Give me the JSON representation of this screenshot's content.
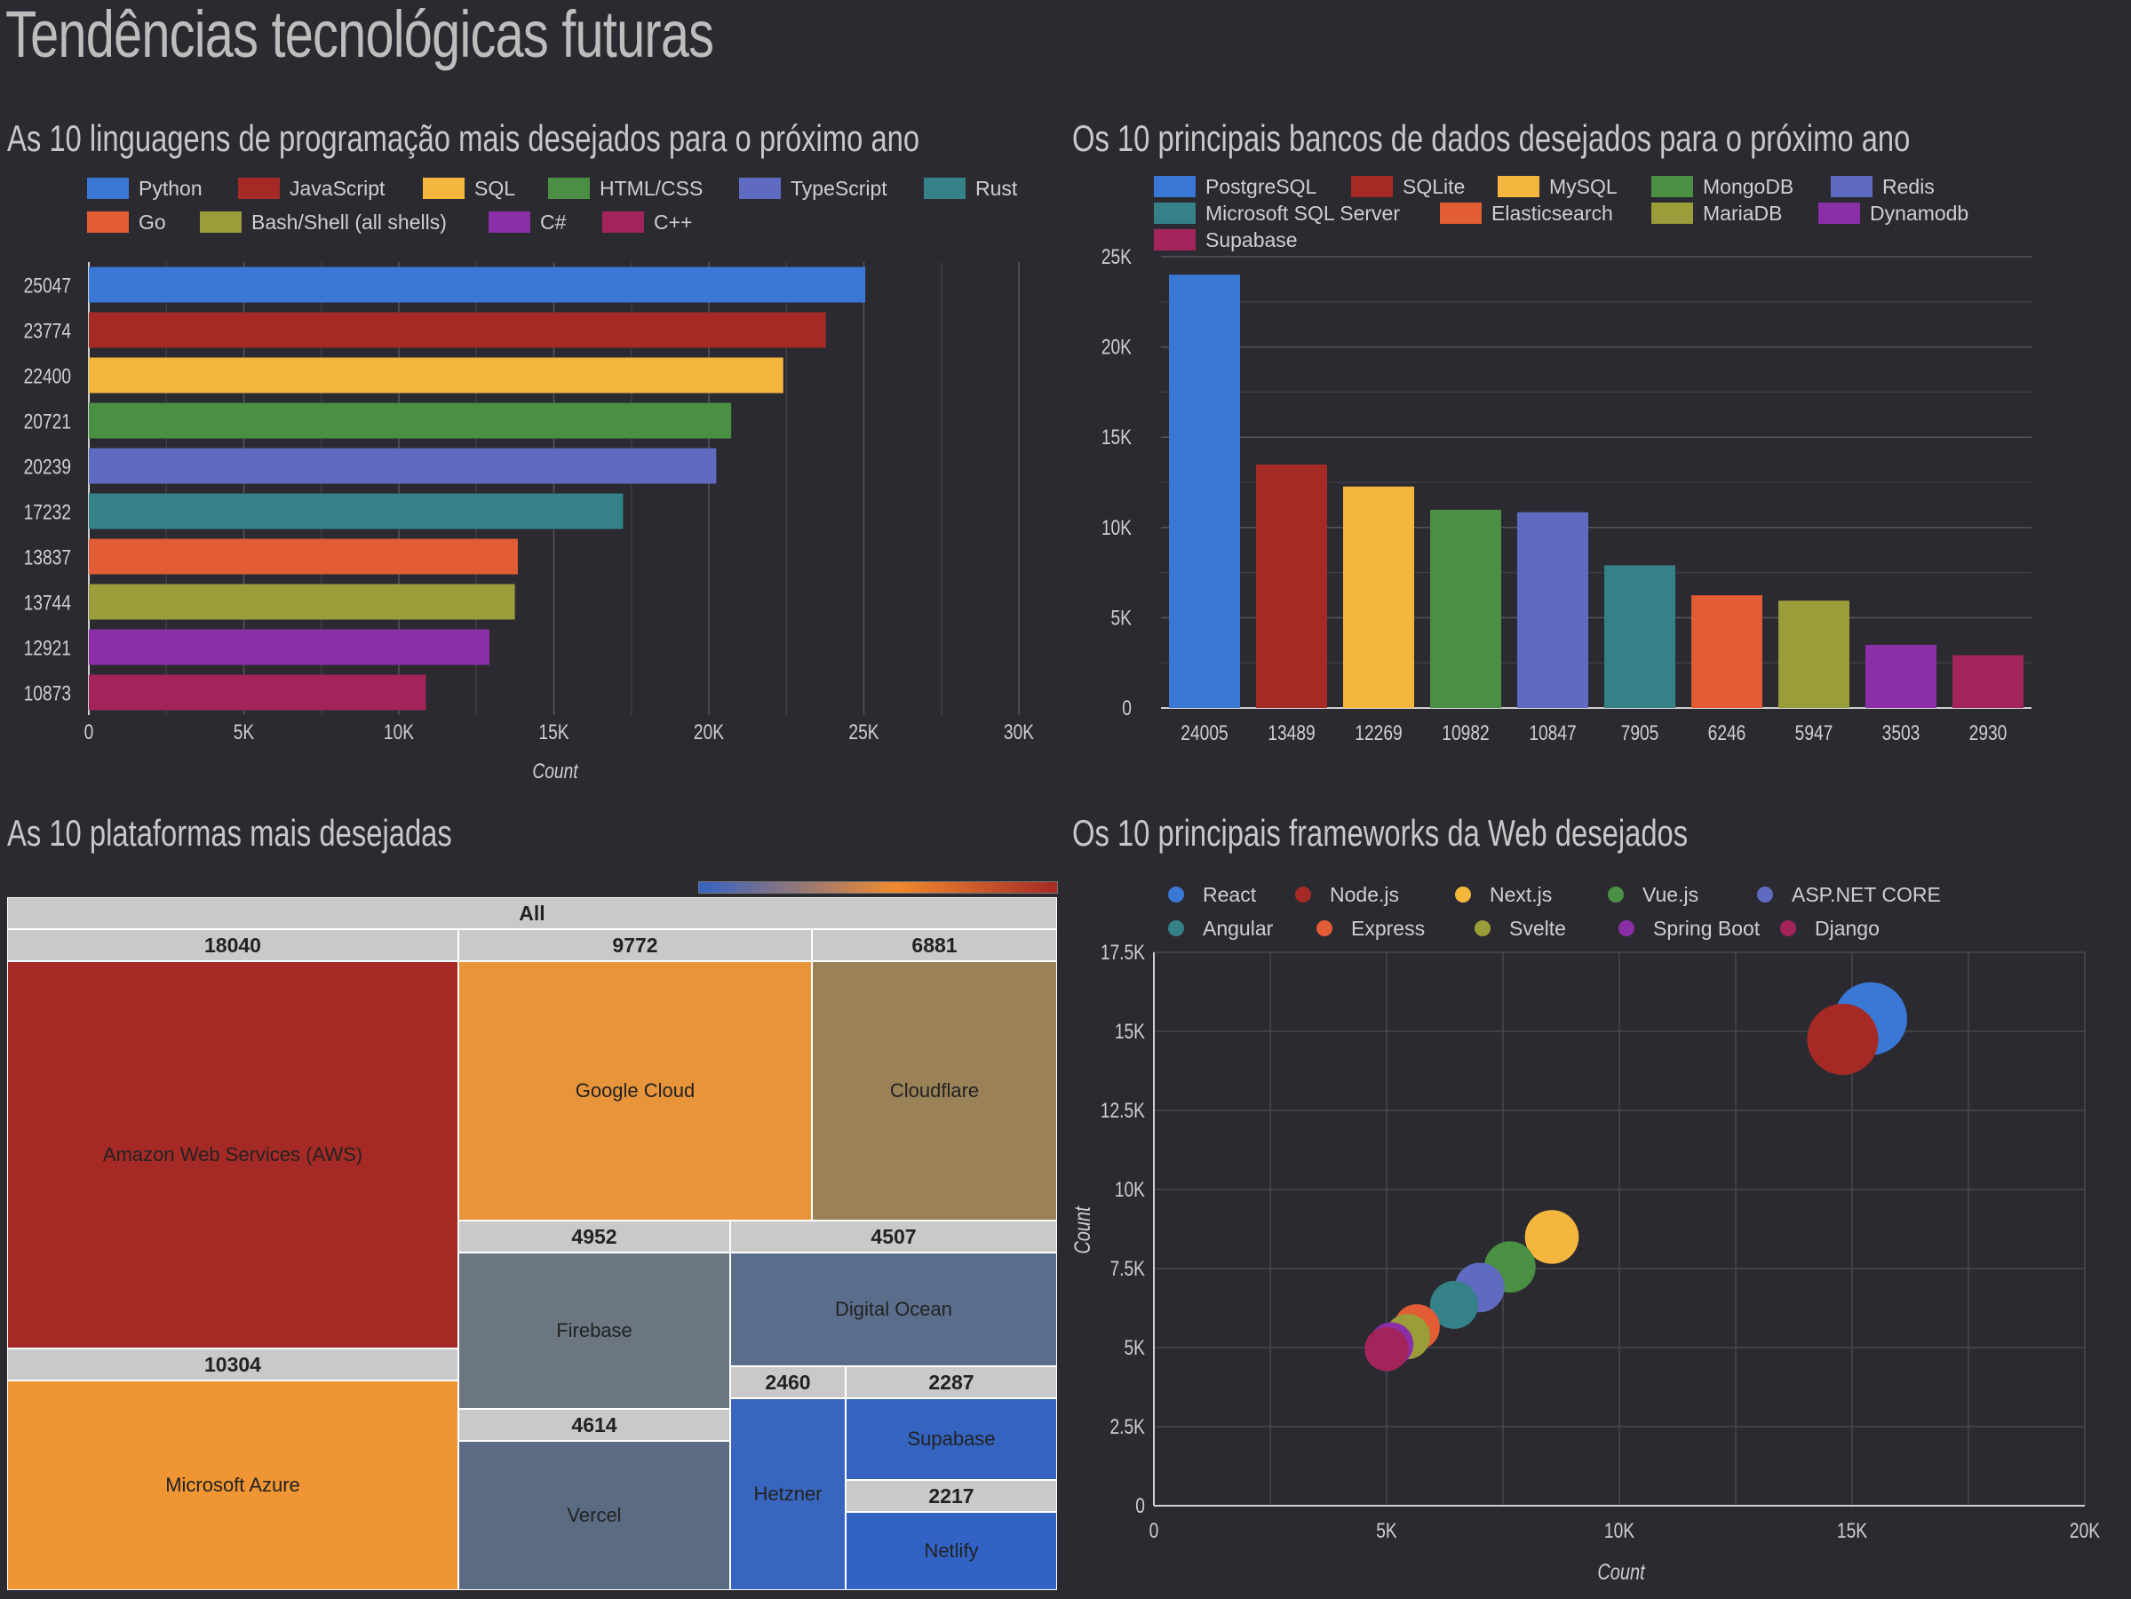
{
  "title": "Tendências tecnológicas futuras",
  "colors": [
    "#3a78d6",
    "#a52a25",
    "#f4b63d",
    "#4a8f43",
    "#5f6bc0",
    "#348187",
    "#e25c35",
    "#9b9d3b",
    "#8b2fa8",
    "#a3245a"
  ],
  "chart_data": [
    {
      "type": "bar",
      "orientation": "horizontal",
      "title": "As 10 linguagens de programação mais desejados para o próximo ano",
      "categories": [
        "Python",
        "JavaScript",
        "SQL",
        "HTML/CSS",
        "TypeScript",
        "Rust",
        "Go",
        "Bash/Shell (all shells)",
        "C#",
        "C++"
      ],
      "values": [
        25047,
        23774,
        22400,
        20721,
        20239,
        17232,
        13837,
        13744,
        12921,
        10873
      ],
      "value_labels": [
        "25047",
        "23774",
        "22400",
        "20721",
        "20239",
        "17232",
        "13837",
        "13744",
        "12921",
        "10873"
      ],
      "xlabel": "Count",
      "xlim": [
        0,
        30000
      ],
      "xticks": [
        "0",
        "5K",
        "10K",
        "15K",
        "20K",
        "25K",
        "30K"
      ],
      "legend": "top"
    },
    {
      "type": "bar",
      "orientation": "vertical",
      "title": "Os 10 principais bancos de dados desejados para o próximo ano",
      "categories": [
        "PostgreSQL",
        "SQLite",
        "MySQL",
        "MongoDB",
        "Redis",
        "Microsoft SQL Server",
        "Elasticsearch",
        "MariaDB",
        "Dynamodb",
        "Supabase"
      ],
      "values": [
        24005,
        13489,
        12269,
        10982,
        10847,
        7905,
        6246,
        5947,
        3503,
        2930
      ],
      "value_labels": [
        "24005",
        "13489",
        "12269",
        "10982",
        "10847",
        "7905",
        "6246",
        "5947",
        "3503",
        "2930"
      ],
      "ylim": [
        0,
        25000
      ],
      "yticks": [
        "0",
        "5K",
        "10K",
        "15K",
        "20K",
        "25K"
      ],
      "legend": "top"
    },
    {
      "type": "treemap",
      "title": "As 10 plataformas mais desejadas",
      "root_label": "All",
      "items": [
        {
          "name": "Amazon Web Services (AWS)",
          "value": 18040,
          "label": "18040",
          "color": "#a52a25"
        },
        {
          "name": "Microsoft Azure",
          "value": 10304,
          "label": "10304",
          "color": "#ef9533"
        },
        {
          "name": "Google Cloud",
          "value": 9772,
          "label": "9772",
          "color": "#e8943a"
        },
        {
          "name": "Cloudflare",
          "value": 6881,
          "label": "6881",
          "color": "#9a8158"
        },
        {
          "name": "Firebase",
          "value": 4952,
          "label": "4952",
          "color": "#6b7680"
        },
        {
          "name": "Vercel",
          "value": 4614,
          "label": "4614",
          "color": "#5b6b82"
        },
        {
          "name": "Digital Ocean",
          "value": 4507,
          "label": "4507",
          "color": "#5a6e8c"
        },
        {
          "name": "Hetzner",
          "value": 2460,
          "label": "2460",
          "color": "#3866be"
        },
        {
          "name": "Supabase",
          "value": 2287,
          "label": "2287",
          "color": "#3464c0"
        },
        {
          "name": "Netlify",
          "value": 2217,
          "label": "2217",
          "color": "#3263c4"
        }
      ]
    },
    {
      "type": "scatter",
      "title": "Os 10 principais frameworks da Web desejados",
      "xlabel": "Count",
      "ylabel": "Count",
      "xlim": [
        0,
        20000
      ],
      "ylim": [
        0,
        17500
      ],
      "xticks": [
        "0",
        "5K",
        "10K",
        "15K",
        "20K"
      ],
      "yticks": [
        "0",
        "2.5K",
        "5K",
        "7.5K",
        "10K",
        "12.5K",
        "15K",
        "17.5K"
      ],
      "legend": "top",
      "series": [
        {
          "name": "React",
          "x": 15400,
          "y": 15400
        },
        {
          "name": "Node.js",
          "x": 14800,
          "y": 14750
        },
        {
          "name": "Next.js",
          "x": 8550,
          "y": 8500
        },
        {
          "name": "Vue.js",
          "x": 7650,
          "y": 7550
        },
        {
          "name": "ASP.NET CORE",
          "x": 7000,
          "y": 6900
        },
        {
          "name": "Angular",
          "x": 6450,
          "y": 6350
        },
        {
          "name": "Express",
          "x": 5650,
          "y": 5650
        },
        {
          "name": "Svelte",
          "x": 5450,
          "y": 5350
        },
        {
          "name": "Spring Boot",
          "x": 5100,
          "y": 5100
        },
        {
          "name": "Django",
          "x": 5000,
          "y": 4950
        }
      ]
    }
  ]
}
